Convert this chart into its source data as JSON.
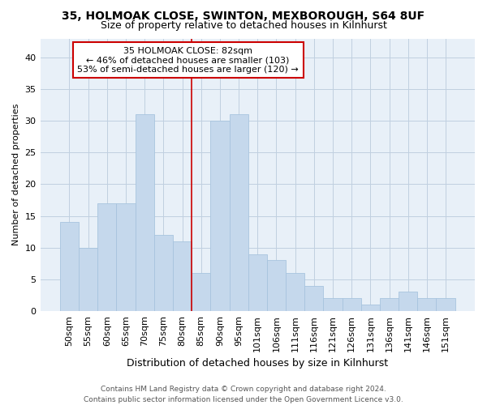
{
  "title1": "35, HOLMOAK CLOSE, SWINTON, MEXBOROUGH, S64 8UF",
  "title2": "Size of property relative to detached houses in Kilnhurst",
  "xlabel": "Distribution of detached houses by size in Kilnhurst",
  "ylabel": "Number of detached properties",
  "categories": [
    "50sqm",
    "55sqm",
    "60sqm",
    "65sqm",
    "70sqm",
    "75sqm",
    "80sqm",
    "85sqm",
    "90sqm",
    "95sqm",
    "101sqm",
    "106sqm",
    "111sqm",
    "116sqm",
    "121sqm",
    "126sqm",
    "131sqm",
    "136sqm",
    "141sqm",
    "146sqm",
    "151sqm"
  ],
  "values": [
    14,
    10,
    17,
    17,
    31,
    12,
    11,
    6,
    30,
    31,
    9,
    8,
    6,
    4,
    2,
    2,
    1,
    2,
    3,
    2,
    2
  ],
  "bar_color": "#c5d8ec",
  "bar_edge_color": "#a8c4de",
  "vline_index": 6.5,
  "annotation_label": "35 HOLMOAK CLOSE: 82sqm",
  "annotation_line1": "← 46% of detached houses are smaller (103)",
  "annotation_line2": "53% of semi-detached houses are larger (120) →",
  "vline_color": "#cc0000",
  "annotation_box_facecolor": "#ffffff",
  "annotation_box_edgecolor": "#cc0000",
  "ylim": [
    0,
    43
  ],
  "yticks": [
    0,
    5,
    10,
    15,
    20,
    25,
    30,
    35,
    40
  ],
  "grid_color": "#c0d0e0",
  "background_color": "#e8f0f8",
  "footer": "Contains HM Land Registry data © Crown copyright and database right 2024.\nContains public sector information licensed under the Open Government Licence v3.0.",
  "title1_fontsize": 10,
  "title2_fontsize": 9,
  "xlabel_fontsize": 9,
  "ylabel_fontsize": 8,
  "tick_fontsize": 8,
  "annotation_fontsize": 8,
  "footer_fontsize": 6.5
}
